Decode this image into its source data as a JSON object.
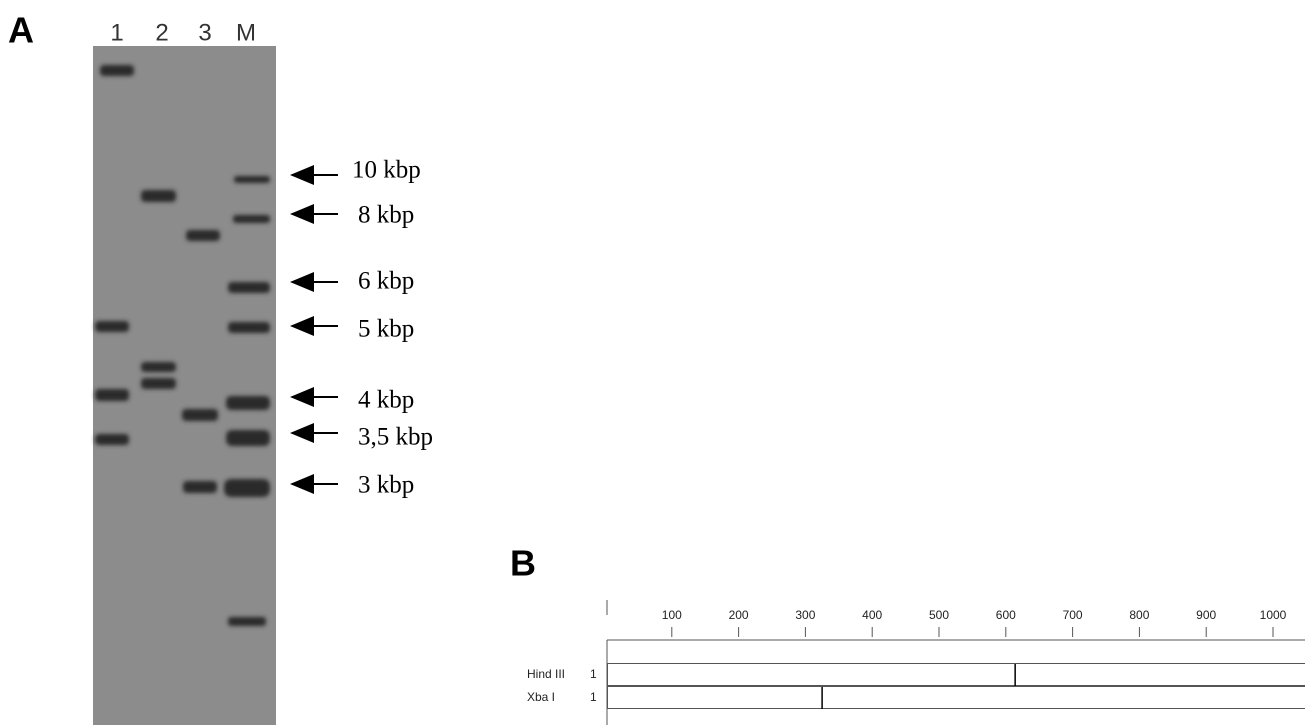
{
  "panel_a": {
    "label": "A",
    "lanes": [
      "1",
      "2",
      "3",
      "M"
    ],
    "markers": [
      "10 kbp",
      "8 kbp",
      "6 kbp",
      "5 kbp",
      "4 kbp",
      "3,5 kbp",
      "3 kbp"
    ]
  },
  "panel_b": {
    "label": "B",
    "ruler_ticks": [
      100,
      200,
      300,
      400,
      500,
      600,
      700,
      800,
      900,
      1000
    ],
    "rows": [
      {
        "name": "Hind III",
        "start": "1",
        "cut": 614
      },
      {
        "name": "Xba I",
        "start": "1",
        "cut": 325
      }
    ]
  }
}
